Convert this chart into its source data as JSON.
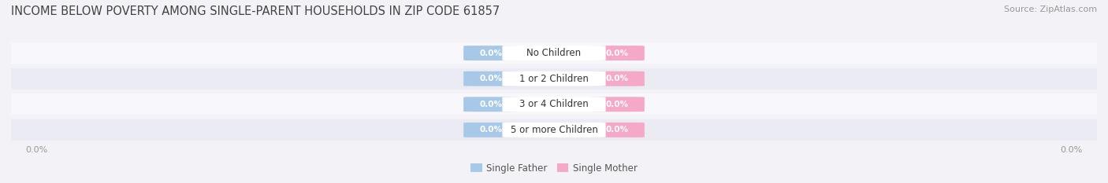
{
  "title": "INCOME BELOW POVERTY AMONG SINGLE-PARENT HOUSEHOLDS IN ZIP CODE 61857",
  "source": "Source: ZipAtlas.com",
  "categories": [
    "No Children",
    "1 or 2 Children",
    "3 or 4 Children",
    "5 or more Children"
  ],
  "father_values": [
    0.0,
    0.0,
    0.0,
    0.0
  ],
  "mother_values": [
    0.0,
    0.0,
    0.0,
    0.0
  ],
  "father_color": "#a8c8e8",
  "mother_color": "#f5a8c8",
  "bg_color": "#f2f2f7",
  "row_bg_light": "#f8f8fc",
  "row_bg_dark": "#ebebf3",
  "center_box_color": "#ffffff",
  "title_color": "#444444",
  "source_color": "#999999",
  "axis_label_color": "#999999",
  "text_value_color": "#ffffff",
  "category_text_color": "#333333",
  "legend_father": "Single Father",
  "legend_mother": "Single Mother",
  "title_fontsize": 10.5,
  "source_fontsize": 8,
  "category_fontsize": 8.5,
  "value_fontsize": 7.5,
  "axis_fontsize": 8,
  "legend_fontsize": 8.5
}
